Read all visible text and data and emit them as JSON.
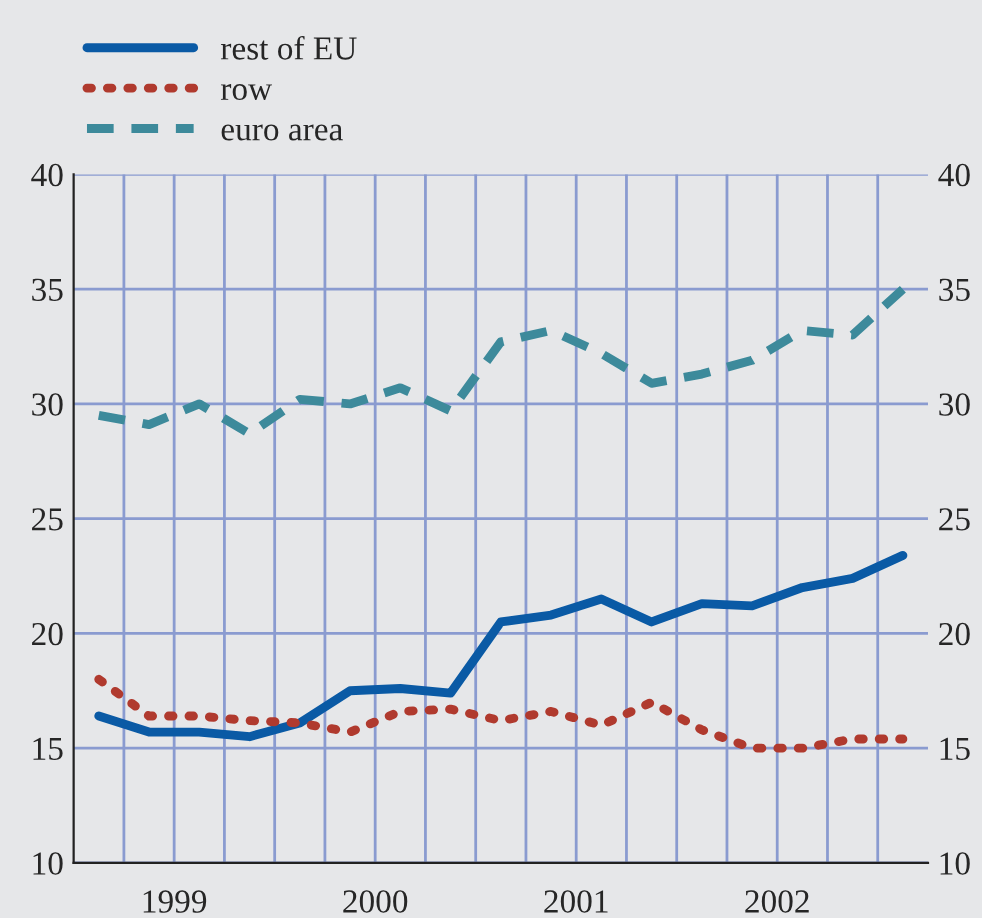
{
  "chart_data": {
    "type": "line",
    "x": [
      1999.125,
      1999.375,
      1999.625,
      1999.875,
      2000.125,
      2000.375,
      2000.625,
      2000.875,
      2001.125,
      2001.375,
      2001.625,
      2001.875,
      2002.125,
      2002.375,
      2002.625,
      2002.875,
      2003.125
    ],
    "series": [
      {
        "name": "rest of EU",
        "color": "#0a5aa5",
        "line_style": "solid",
        "values": [
          16.4,
          15.7,
          15.7,
          15.5,
          16.1,
          17.5,
          17.6,
          17.4,
          20.5,
          20.8,
          21.5,
          20.5,
          21.3,
          21.2,
          22.0,
          22.4,
          23.4
        ]
      },
      {
        "name": "row",
        "color": "#b03a2e",
        "line_style": "dotted",
        "values": [
          18.0,
          16.4,
          16.4,
          16.2,
          16.1,
          15.7,
          16.6,
          16.7,
          16.2,
          16.6,
          16.0,
          17.0,
          15.8,
          15.0,
          15.0,
          15.4,
          15.4
        ]
      },
      {
        "name": "euro area",
        "color": "#3d8a9b",
        "line_style": "dashed",
        "values": [
          29.5,
          29.1,
          30.0,
          28.7,
          30.2,
          30.0,
          30.7,
          29.7,
          32.7,
          33.2,
          32.2,
          30.9,
          31.3,
          31.9,
          33.2,
          33.0,
          35.0
        ]
      }
    ],
    "xlim": [
      1999,
      2003.25
    ],
    "xticks": [
      {
        "value": 1999,
        "label": null
      },
      {
        "value": 1999.25,
        "label": null
      },
      {
        "value": 1999.5,
        "label": "1999"
      },
      {
        "value": 1999.75,
        "label": null
      },
      {
        "value": 2000,
        "label": null
      },
      {
        "value": 2000.25,
        "label": null
      },
      {
        "value": 2000.5,
        "label": "2000"
      },
      {
        "value": 2000.75,
        "label": null
      },
      {
        "value": 2001,
        "label": null
      },
      {
        "value": 2001.25,
        "label": null
      },
      {
        "value": 2001.5,
        "label": "2001"
      },
      {
        "value": 2001.75,
        "label": null
      },
      {
        "value": 2002,
        "label": null
      },
      {
        "value": 2002.25,
        "label": null
      },
      {
        "value": 2002.5,
        "label": "2002"
      },
      {
        "value": 2002.75,
        "label": null
      },
      {
        "value": 2003,
        "label": null
      }
    ],
    "ylim": [
      10,
      40
    ],
    "yticks": [
      10,
      15,
      20,
      25,
      30,
      35,
      40
    ],
    "y2lim": [
      10,
      40
    ],
    "y2ticks": [
      10,
      15,
      20,
      25,
      30,
      35,
      40
    ],
    "grid": true,
    "legend": "top left",
    "marker": "none"
  }
}
